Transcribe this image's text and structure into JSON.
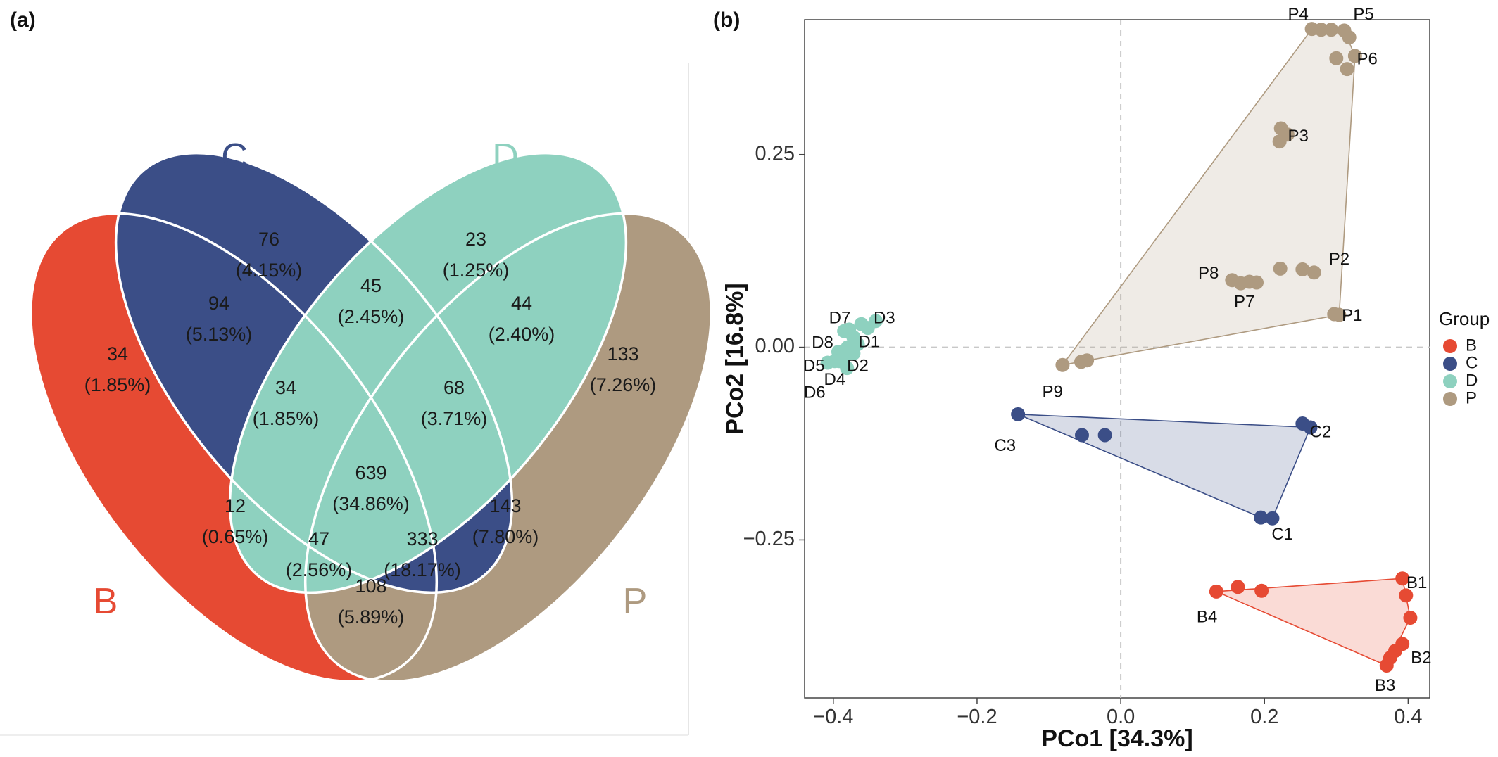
{
  "panels": {
    "a": "(a)",
    "b": "(b)"
  },
  "colors": {
    "B": "#E64A33",
    "C": "#3B4E87",
    "D": "#8ED1BF",
    "P": "#AE9A80"
  },
  "chart_data": [
    {
      "type": "venn",
      "sets": [
        "B",
        "C",
        "D",
        "P"
      ],
      "regions": [
        {
          "id": "C",
          "count": "76",
          "pct": "(4.15%)"
        },
        {
          "id": "D",
          "count": "23",
          "pct": "(1.25%)"
        },
        {
          "id": "BC",
          "count": "94",
          "pct": "(5.13%)"
        },
        {
          "id": "CD",
          "count": "45",
          "pct": "(2.45%)"
        },
        {
          "id": "DP",
          "count": "44",
          "pct": "(2.40%)"
        },
        {
          "id": "B",
          "count": "34",
          "pct": "(1.85%)"
        },
        {
          "id": "P",
          "count": "133",
          "pct": "(7.26%)"
        },
        {
          "id": "BCD",
          "count": "34",
          "pct": "(1.85%)"
        },
        {
          "id": "CDP",
          "count": "68",
          "pct": "(3.71%)"
        },
        {
          "id": "BCDP",
          "count": "639",
          "pct": "(34.86%)"
        },
        {
          "id": "BD",
          "count": "12",
          "pct": "(0.65%)"
        },
        {
          "id": "CP",
          "count": "143",
          "pct": "(7.80%)"
        },
        {
          "id": "BDP",
          "count": "47",
          "pct": "(2.56%)"
        },
        {
          "id": "BCP",
          "count": "333",
          "pct": "(18.17%)"
        },
        {
          "id": "BP",
          "count": "108",
          "pct": "(5.89%)"
        }
      ]
    },
    {
      "type": "scatter",
      "xlabel": "PCo1 [34.3%]",
      "ylabel": "PCo2 [16.8%]",
      "xlim": [
        -0.44,
        0.43
      ],
      "ylim": [
        -0.455,
        0.425
      ],
      "xticks": [
        -0.4,
        -0.2,
        0.0,
        0.2,
        0.4
      ],
      "xtick_labels": [
        "−0.4",
        "−0.2",
        "0.0",
        "0.2",
        "0.4"
      ],
      "yticks": [
        -0.25,
        0.0,
        0.25
      ],
      "ytick_labels": [
        "−0.25",
        "0.00",
        "0.25"
      ],
      "legend_title": "Group",
      "legend_position": "right",
      "series": [
        {
          "name": "B",
          "points": [
            [
              0.133,
              -0.317
            ],
            [
              0.163,
              -0.311
            ],
            [
              0.196,
              -0.316
            ],
            [
              0.392,
              -0.3
            ],
            [
              0.397,
              -0.322
            ],
            [
              0.403,
              -0.351
            ],
            [
              0.392,
              -0.385
            ],
            [
              0.382,
              -0.394
            ],
            [
              0.375,
              -0.403
            ],
            [
              0.37,
              -0.413
            ]
          ],
          "hull": [
            [
              0.133,
              -0.317
            ],
            [
              0.392,
              -0.3
            ],
            [
              0.403,
              -0.351
            ],
            [
              0.37,
              -0.413
            ]
          ],
          "labels": [
            {
              "text": "B1",
              "x": 0.412,
              "y": -0.307
            },
            {
              "text": "B4",
              "x": 0.12,
              "y": -0.351
            },
            {
              "text": "B2",
              "x": 0.418,
              "y": -0.404
            },
            {
              "text": "B3",
              "x": 0.368,
              "y": -0.44
            }
          ]
        },
        {
          "name": "C",
          "points": [
            [
              -0.143,
              -0.087
            ],
            [
              -0.054,
              -0.114
            ],
            [
              -0.022,
              -0.114
            ],
            [
              0.253,
              -0.099
            ],
            [
              0.264,
              -0.104
            ],
            [
              0.195,
              -0.221
            ],
            [
              0.211,
              -0.222
            ]
          ],
          "hull": [
            [
              -0.143,
              -0.087
            ],
            [
              0.264,
              -0.104
            ],
            [
              0.211,
              -0.222
            ],
            [
              0.195,
              -0.221
            ]
          ],
          "labels": [
            {
              "text": "C2",
              "x": 0.278,
              "y": -0.111
            },
            {
              "text": "C3",
              "x": -0.161,
              "y": -0.129
            },
            {
              "text": "C1",
              "x": 0.225,
              "y": -0.244
            }
          ]
        },
        {
          "name": "D",
          "points": [
            [
              -0.385,
              0.021
            ],
            [
              -0.378,
              0.023
            ],
            [
              -0.352,
              0.025
            ],
            [
              -0.341,
              0.034
            ],
            [
              -0.372,
              0.013
            ],
            [
              -0.366,
              0.004
            ],
            [
              -0.38,
              0.0
            ],
            [
              -0.393,
              -0.006
            ],
            [
              -0.384,
              -0.012
            ],
            [
              -0.398,
              -0.018
            ],
            [
              -0.408,
              -0.02
            ],
            [
              -0.381,
              -0.027
            ],
            [
              -0.392,
              -0.018
            ],
            [
              -0.361,
              0.03
            ],
            [
              -0.372,
              -0.008
            ]
          ],
          "hull": [],
          "labels": [
            {
              "text": "D7",
              "x": -0.391,
              "y": 0.037
            },
            {
              "text": "D3",
              "x": -0.329,
              "y": 0.037
            },
            {
              "text": "D8",
              "x": -0.415,
              "y": 0.005
            },
            {
              "text": "D1",
              "x": -0.35,
              "y": 0.006
            },
            {
              "text": "D5",
              "x": -0.427,
              "y": -0.025
            },
            {
              "text": "D2",
              "x": -0.366,
              "y": -0.025
            },
            {
              "text": "D4",
              "x": -0.398,
              "y": -0.043
            },
            {
              "text": "D6",
              "x": -0.426,
              "y": -0.06
            }
          ]
        },
        {
          "name": "P",
          "points": [
            [
              0.266,
              0.413
            ],
            [
              0.279,
              0.412
            ],
            [
              0.293,
              0.412
            ],
            [
              0.311,
              0.411
            ],
            [
              0.318,
              0.402
            ],
            [
              0.3,
              0.375
            ],
            [
              0.326,
              0.378
            ],
            [
              0.315,
              0.361
            ],
            [
              0.223,
              0.284
            ],
            [
              0.232,
              0.276
            ],
            [
              0.221,
              0.267
            ],
            [
              0.222,
              0.102
            ],
            [
              0.253,
              0.101
            ],
            [
              0.269,
              0.097
            ],
            [
              0.155,
              0.087
            ],
            [
              0.167,
              0.083
            ],
            [
              0.179,
              0.085
            ],
            [
              0.189,
              0.084
            ],
            [
              0.297,
              0.043
            ],
            [
              0.304,
              0.042
            ],
            [
              -0.081,
              -0.023
            ],
            [
              -0.055,
              -0.019
            ],
            [
              -0.047,
              -0.017
            ]
          ],
          "hull": [
            [
              -0.081,
              -0.023
            ],
            [
              0.266,
              0.413
            ],
            [
              0.311,
              0.411
            ],
            [
              0.326,
              0.378
            ],
            [
              0.304,
              0.042
            ]
          ],
          "labels": [
            {
              "text": "P4",
              "x": 0.247,
              "y": 0.431
            },
            {
              "text": "P5",
              "x": 0.338,
              "y": 0.431
            },
            {
              "text": "P6",
              "x": 0.343,
              "y": 0.373
            },
            {
              "text": "P3",
              "x": 0.247,
              "y": 0.273
            },
            {
              "text": "P2",
              "x": 0.304,
              "y": 0.113
            },
            {
              "text": "P8",
              "x": 0.122,
              "y": 0.095
            },
            {
              "text": "P7",
              "x": 0.172,
              "y": 0.058
            },
            {
              "text": "P1",
              "x": 0.322,
              "y": 0.04
            },
            {
              "text": "P9",
              "x": -0.095,
              "y": -0.059
            }
          ]
        }
      ]
    }
  ]
}
